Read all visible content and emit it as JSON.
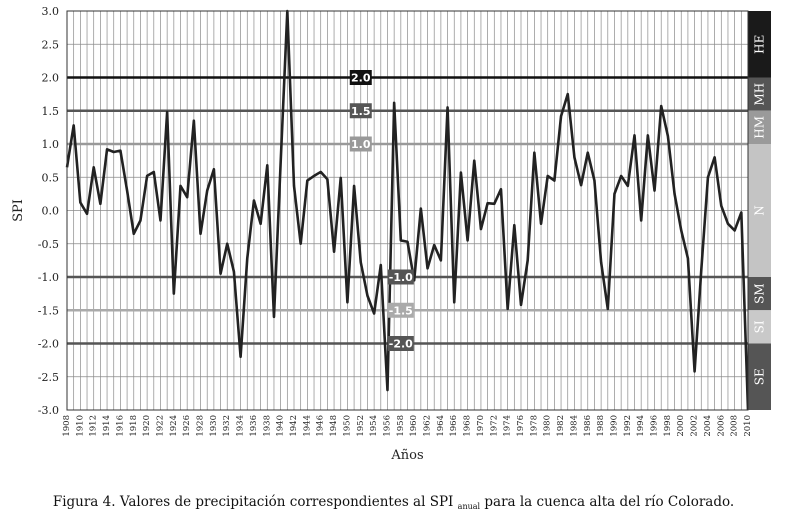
{
  "caption": {
    "prefix": "Figura 4. Valores de precipitación correspondientes al SPI",
    "subscript": "anual",
    "suffix": "para la cuenca alta del río Colorado."
  },
  "chart_data": {
    "type": "line",
    "xlabel": "Años",
    "ylabel": "SPI",
    "ylim": [
      -3.0,
      3.0
    ],
    "xlim": [
      1908,
      2010
    ],
    "y_ticks": [
      "3.0",
      "2.5",
      "2.0",
      "1.5",
      "1.0",
      "0.5",
      "0.0",
      "-0.5",
      "-1.0",
      "-1.5",
      "-2.0",
      "-2.5",
      "-3.0"
    ],
    "x_ticks": [
      "1908",
      "1910",
      "1912",
      "1914",
      "1916",
      "1918",
      "1920",
      "1922",
      "1924",
      "1926",
      "1928",
      "1930",
      "1932",
      "1934",
      "1936",
      "1938",
      "1940",
      "1942",
      "1944",
      "1946",
      "1948",
      "1950",
      "1952",
      "1954",
      "1956",
      "1958",
      "1960",
      "1962",
      "1964",
      "1966",
      "1968",
      "1970",
      "1972",
      "1974",
      "1976",
      "1978",
      "1980",
      "1982",
      "1984",
      "1986",
      "1988",
      "1990",
      "1992",
      "1994",
      "1996",
      "1998",
      "2000",
      "2002",
      "2004",
      "2006",
      "2008",
      "2010"
    ],
    "grid": true,
    "series": [
      {
        "x": [
          1908,
          1909,
          1910,
          1911,
          1912,
          1913,
          1914,
          1915,
          1916,
          1917,
          1918,
          1919,
          1920,
          1921,
          1922,
          1923,
          1924,
          1925,
          1926,
          1927,
          1928,
          1929,
          1930,
          1931,
          1932,
          1933,
          1934,
          1935,
          1936,
          1937,
          1938,
          1939,
          1940,
          1941,
          1942,
          1943,
          1944,
          1945,
          1946,
          1947,
          1948,
          1949,
          1950,
          1951,
          1952,
          1953,
          1954,
          1955,
          1956,
          1957,
          1958,
          1959,
          1960,
          1961,
          1962,
          1963,
          1964,
          1965,
          1966,
          1967,
          1968,
          1969,
          1970,
          1971,
          1972,
          1973,
          1974,
          1975,
          1976,
          1977,
          1978,
          1979,
          1980,
          1981,
          1982,
          1983,
          1984,
          1985,
          1986,
          1987,
          1988,
          1989,
          1990,
          1991,
          1992,
          1993,
          1994,
          1995,
          1996,
          1997,
          1998,
          1999,
          2000,
          2001,
          2002,
          2003,
          2004,
          2005,
          2006,
          2007,
          2008,
          2009,
          2010
        ],
        "values": [
          0.65,
          1.28,
          0.12,
          -0.05,
          0.65,
          0.1,
          0.92,
          0.88,
          0.9,
          0.3,
          -0.35,
          -0.15,
          0.52,
          0.58,
          -0.15,
          1.48,
          -1.25,
          0.37,
          0.2,
          1.35,
          -0.35,
          0.3,
          0.62,
          -0.95,
          -0.5,
          -0.92,
          -2.2,
          -0.72,
          0.15,
          -0.2,
          0.68,
          -1.6,
          0.72,
          3.0,
          0.37,
          -0.5,
          0.45,
          0.52,
          0.58,
          0.47,
          -0.62,
          0.49,
          -1.38,
          0.37,
          -0.78,
          -1.28,
          -1.55,
          -0.82,
          -2.7,
          1.62,
          -0.45,
          -0.47,
          -1.05,
          0.03,
          -0.87,
          -0.52,
          -0.75,
          1.55,
          -1.38,
          0.57,
          -0.45,
          0.75,
          -0.28,
          0.11,
          0.1,
          0.32,
          -1.48,
          -0.22,
          -1.42,
          -0.75,
          0.87,
          -0.2,
          0.52,
          0.45,
          1.42,
          1.75,
          0.8,
          0.38,
          0.87,
          0.45,
          -0.78,
          -1.48,
          0.25,
          0.52,
          0.37,
          1.13,
          -0.15,
          1.13,
          0.3,
          1.57,
          1.12,
          0.25,
          -0.3,
          -0.72,
          -2.42,
          -0.9,
          0.5,
          0.8,
          0.07,
          -0.2,
          -0.3,
          -0.03,
          -3.0
        ]
      }
    ],
    "thresholds": [
      {
        "value": 2.0,
        "label": "2.0",
        "color": "#111111",
        "label_x": 1952
      },
      {
        "value": 1.5,
        "label": "1.5",
        "color": "#555555",
        "label_x": 1952
      },
      {
        "value": 1.0,
        "label": "1.0",
        "color": "#999999",
        "label_x": 1952
      },
      {
        "value": -1.0,
        "label": "-1.0",
        "color": "#555555",
        "label_x": 1958
      },
      {
        "value": -1.5,
        "label": "-1.5",
        "color": "#aaaaaa",
        "label_x": 1958
      },
      {
        "value": -2.0,
        "label": "-2.0",
        "color": "#555555",
        "label_x": 1958
      }
    ],
    "categories": [
      {
        "label": "HE",
        "from": 2.0,
        "to": 3.0,
        "color": "#1a1a1a"
      },
      {
        "label": "MH",
        "from": 1.5,
        "to": 2.0,
        "color": "#555555"
      },
      {
        "label": "HM",
        "from": 1.0,
        "to": 1.5,
        "color": "#9a9a9a"
      },
      {
        "label": "N",
        "from": -1.0,
        "to": 1.0,
        "color": "#c4c4c4"
      },
      {
        "label": "SM",
        "from": -1.5,
        "to": -1.0,
        "color": "#555555"
      },
      {
        "label": "SI",
        "from": -2.0,
        "to": -1.5,
        "color": "#c9c9c9"
      },
      {
        "label": "SE",
        "from": -3.0,
        "to": -2.0,
        "color": "#555555"
      }
    ]
  }
}
